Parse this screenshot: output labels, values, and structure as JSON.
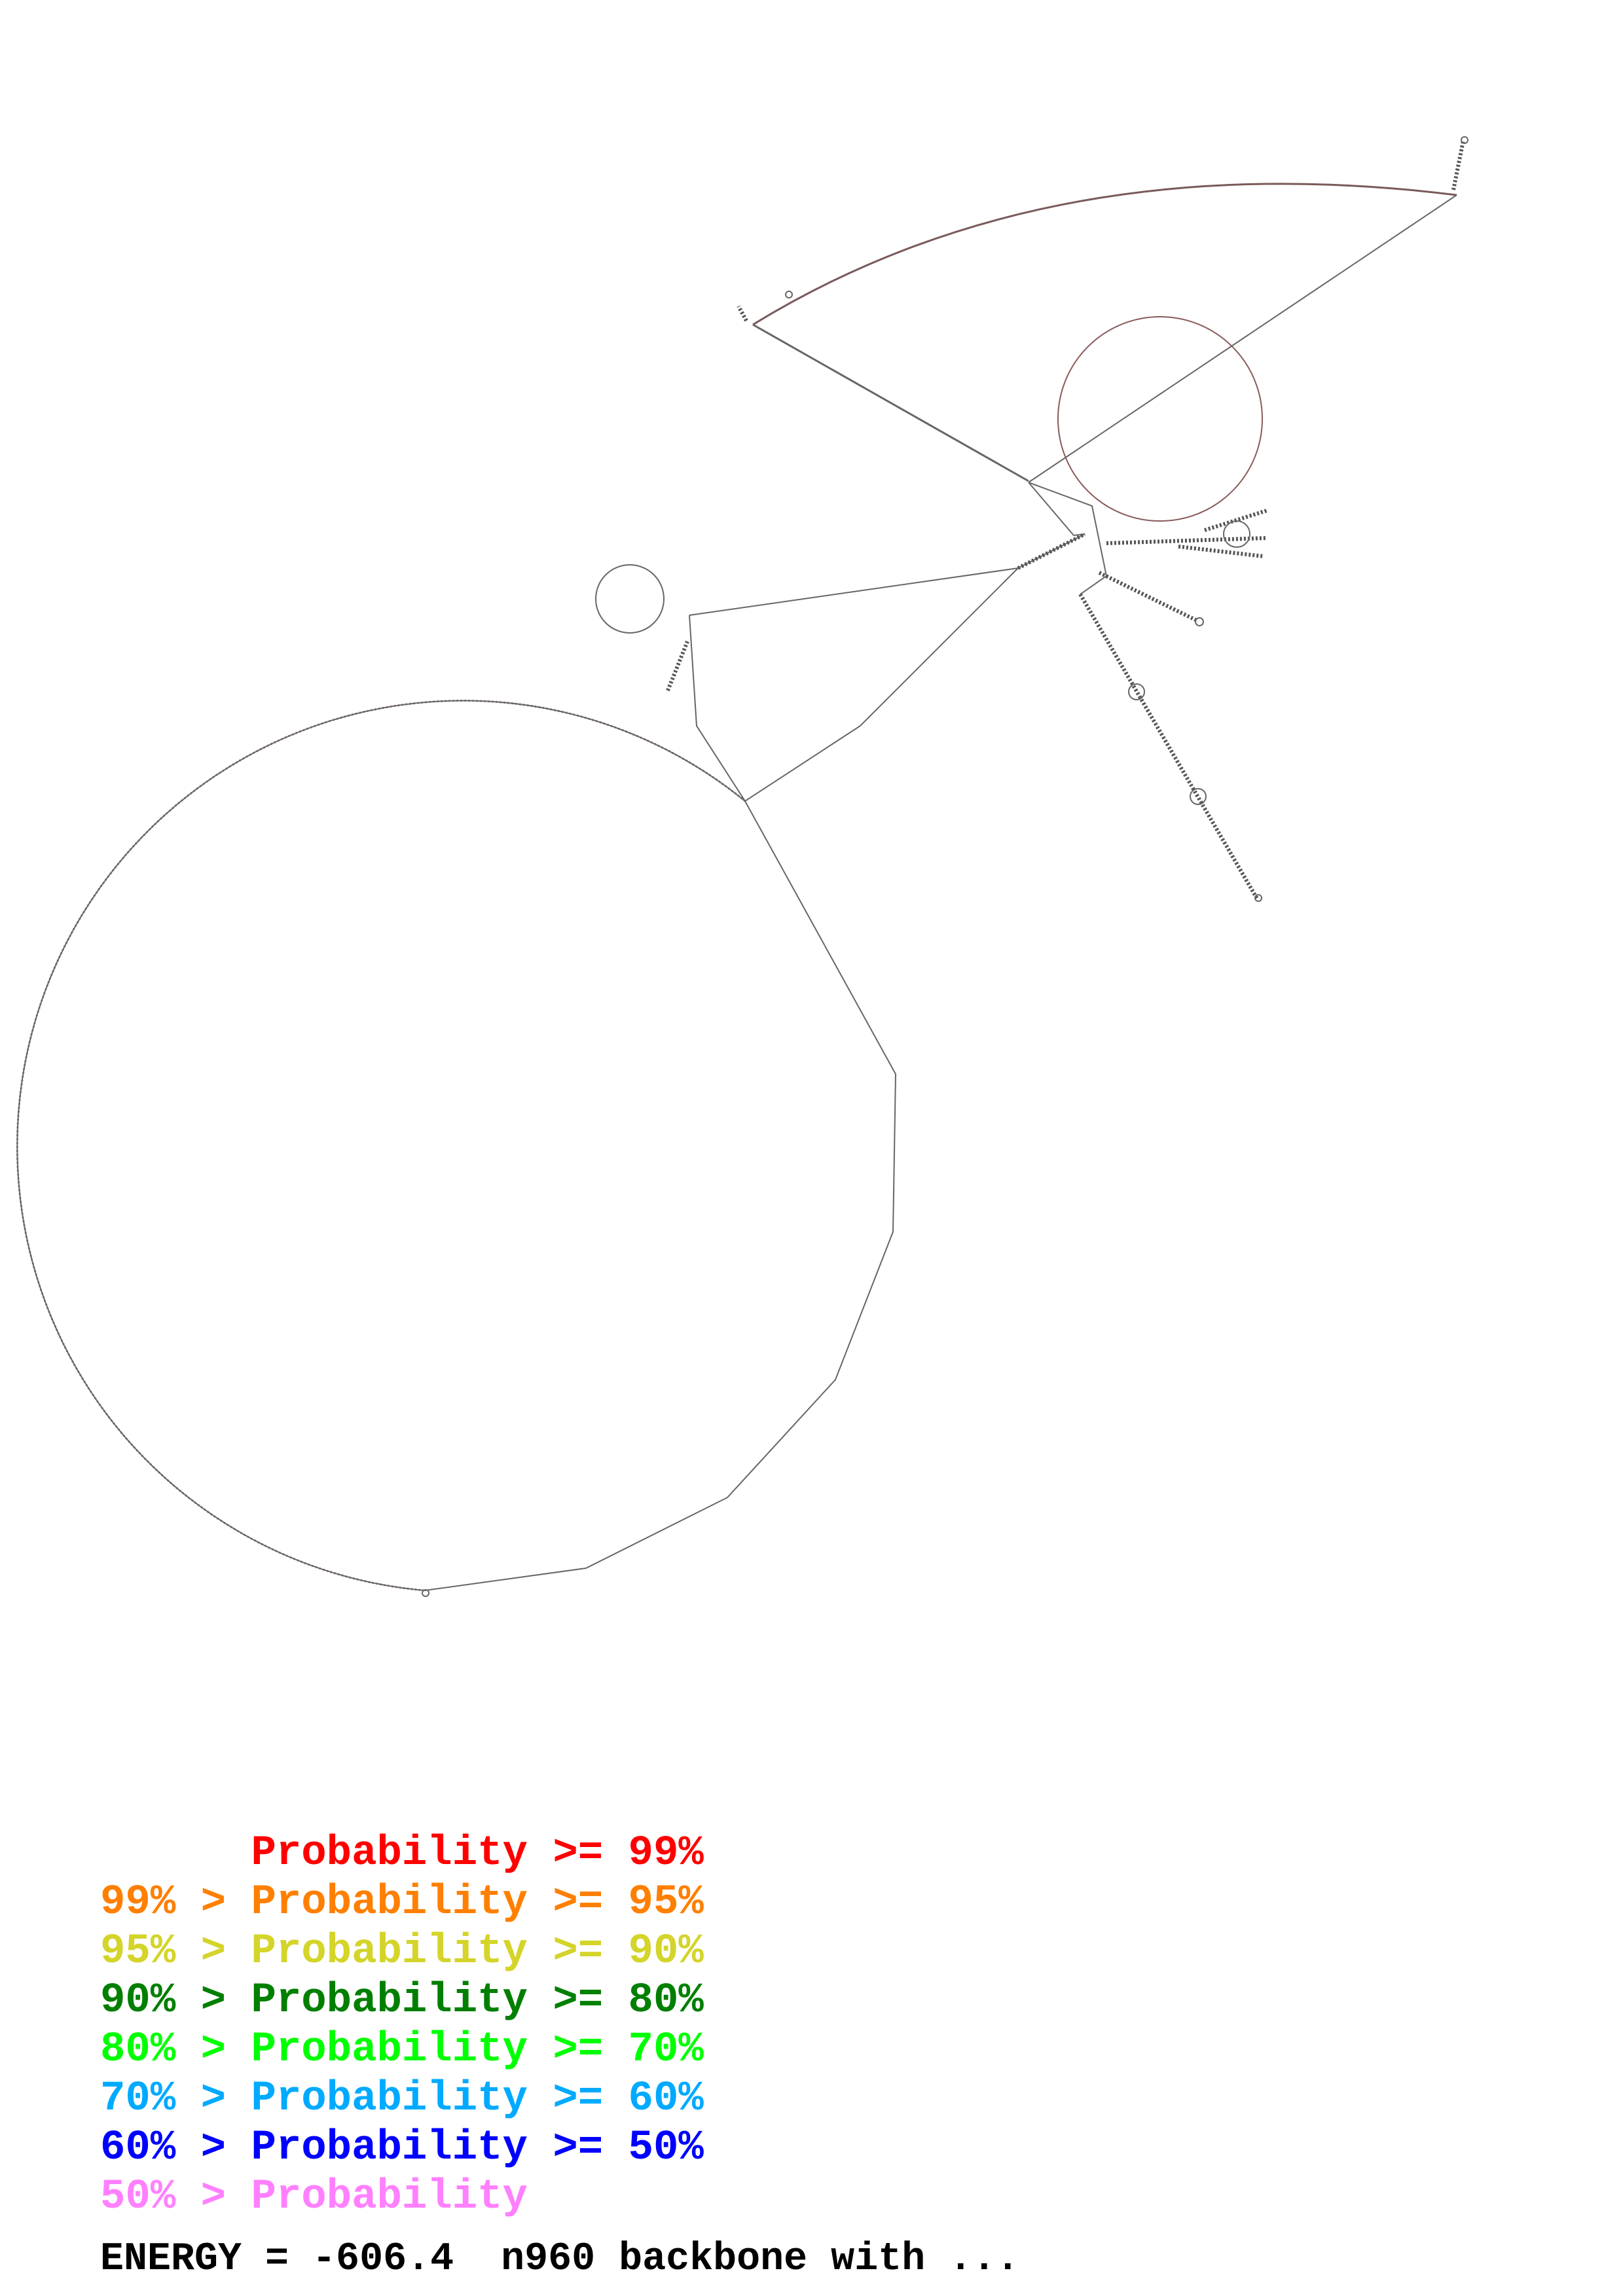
{
  "colors": {
    "backbone": "#555555",
    "unpaired": "#c06060",
    "p99": "#ff0000",
    "p95": "#ff7f00",
    "p90": "#d4d42a",
    "p80": "#007f00",
    "p70": "#00ff00",
    "p60": "#00aaff",
    "p50": "#0000ff",
    "plow": "#ff80ff"
  },
  "legend": [
    {
      "text": "Probability >= 99%",
      "color": "#ff0000",
      "indent": true
    },
    {
      "text": "99% > Probability >= 95%",
      "color": "#ff7f00"
    },
    {
      "text": "95% > Probability >= 90%",
      "color": "#d4d42a"
    },
    {
      "text": "90% > Probability >= 80%",
      "color": "#007f00"
    },
    {
      "text": "80% > Probability >= 70%",
      "color": "#00ff00"
    },
    {
      "text": "70% > Probability >= 60%",
      "color": "#00aaff"
    },
    {
      "text": "60% > Probability >= 50%",
      "color": "#0000ff"
    },
    {
      "text": "50% > Probability",
      "color": "#ff80ff"
    }
  ],
  "energy_line": "ENERGY = -606.4  n960 backbone with ..."
}
